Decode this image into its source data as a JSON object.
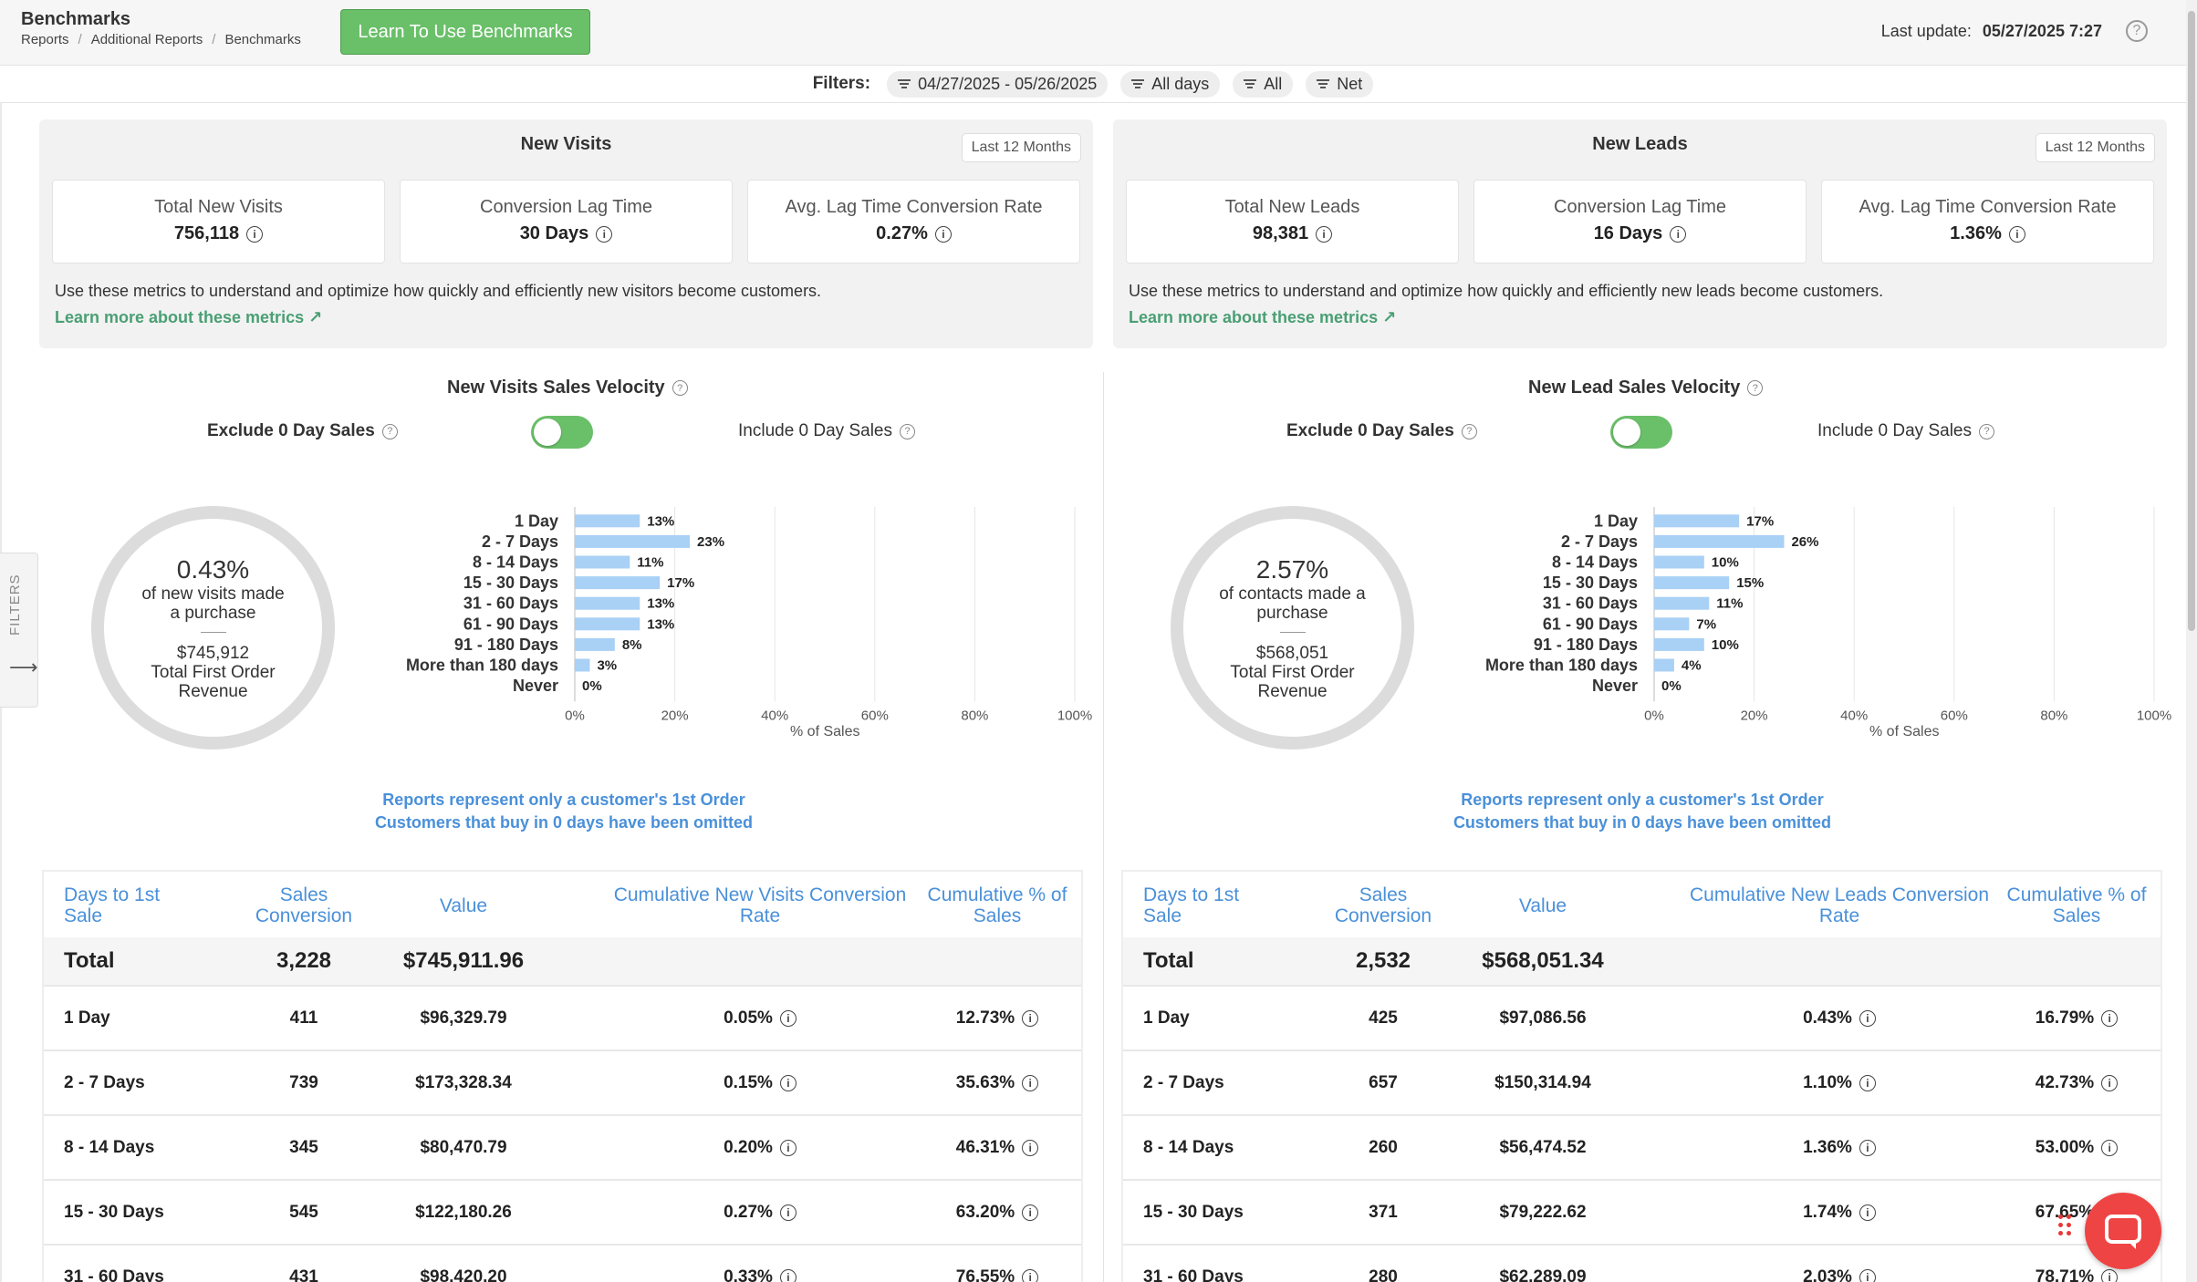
{
  "header": {
    "title": "Benchmarks",
    "breadcrumb": [
      "Reports",
      "Additional Reports",
      "Benchmarks"
    ],
    "learn_button": "Learn To Use Benchmarks",
    "last_update_label": "Last update:",
    "last_update_value": "05/27/2025 7:27",
    "help_icon": "question-circle-icon"
  },
  "filters": {
    "label": "Filters:",
    "chips": [
      "04/27/2025 - 05/26/2025",
      "All days",
      "All",
      "Net"
    ],
    "side_tab_label": "FILTERS"
  },
  "visits": {
    "summary": {
      "title": "New Visits",
      "period": "Last 12 Months",
      "metrics": [
        {
          "label": "Total New Visits",
          "value": "756,118"
        },
        {
          "label": "Conversion Lag Time",
          "value": "30 Days"
        },
        {
          "label": "Avg. Lag Time Conversion Rate",
          "value": "0.27%"
        }
      ],
      "description": "Use these metrics to understand and optimize how quickly and efficiently new visitors become customers.",
      "link": "Learn more about these metrics ↗"
    },
    "velocity": {
      "title": "New Visits Sales Velocity",
      "exclude_label": "Exclude 0 Day Sales",
      "include_label": "Include 0 Day Sales",
      "donut": {
        "pct": "0.43%",
        "sub": "of new visits made a purchase",
        "revenue": "$745,912",
        "revenue_label": "Total First Order Revenue"
      },
      "note_line1": "Reports represent only a customer's 1st Order",
      "note_line2": "Customers that buy in 0 days have been omitted"
    },
    "chart_data": {
      "type": "bar",
      "orientation": "horizontal",
      "categories": [
        "1 Day",
        "2 - 7 Days",
        "8 - 14 Days",
        "15 - 30 Days",
        "31 - 60 Days",
        "61 - 90 Days",
        "91 - 180 Days",
        "More than 180 days",
        "Never"
      ],
      "values": [
        13,
        23,
        11,
        17,
        13,
        13,
        8,
        3,
        0
      ],
      "value_labels": [
        "13%",
        "23%",
        "11%",
        "17%",
        "13%",
        "13%",
        "8%",
        "3%",
        "0%"
      ],
      "xticks": [
        "0%",
        "20%",
        "40%",
        "60%",
        "80%",
        "100%"
      ],
      "xlim": [
        0,
        100
      ],
      "xlabel": "% of Sales",
      "bar_color": "#a9d0f5"
    },
    "table": {
      "headers": [
        "Days to 1st Sale",
        "Sales Conversion",
        "Value",
        "Cumulative New Visits Conversion Rate",
        "Cumulative % of Sales"
      ],
      "total": {
        "label": "Total",
        "conversion": "3,228",
        "value": "$745,911.96"
      },
      "rows": [
        {
          "days": "1 Day",
          "conversion": "411",
          "value": "$96,329.79",
          "rate": "0.05%",
          "pct": "12.73%"
        },
        {
          "days": "2 - 7 Days",
          "conversion": "739",
          "value": "$173,328.34",
          "rate": "0.15%",
          "pct": "35.63%"
        },
        {
          "days": "8 - 14 Days",
          "conversion": "345",
          "value": "$80,470.79",
          "rate": "0.20%",
          "pct": "46.31%"
        },
        {
          "days": "15 - 30 Days",
          "conversion": "545",
          "value": "$122,180.26",
          "rate": "0.27%",
          "pct": "63.20%"
        },
        {
          "days": "31 - 60 Days",
          "conversion": "431",
          "value": "$98,420.20",
          "rate": "0.33%",
          "pct": "76.55%"
        }
      ]
    }
  },
  "leads": {
    "summary": {
      "title": "New Leads",
      "period": "Last 12 Months",
      "metrics": [
        {
          "label": "Total New Leads",
          "value": "98,381"
        },
        {
          "label": "Conversion Lag Time",
          "value": "16 Days"
        },
        {
          "label": "Avg. Lag Time Conversion Rate",
          "value": "1.36%"
        }
      ],
      "description": "Use these metrics to understand and optimize how quickly and efficiently new leads become customers.",
      "link": "Learn more about these metrics ↗"
    },
    "velocity": {
      "title": "New Lead Sales Velocity",
      "exclude_label": "Exclude 0 Day Sales",
      "include_label": "Include 0 Day Sales",
      "donut": {
        "pct": "2.57%",
        "sub": "of contacts made a purchase",
        "revenue": "$568,051",
        "revenue_label": "Total First Order Revenue"
      },
      "note_line1": "Reports represent only a customer's 1st Order",
      "note_line2": "Customers that buy in 0 days have been omitted"
    },
    "chart_data": {
      "type": "bar",
      "orientation": "horizontal",
      "categories": [
        "1 Day",
        "2 - 7 Days",
        "8 - 14 Days",
        "15 - 30 Days",
        "31 - 60 Days",
        "61 - 90 Days",
        "91 - 180 Days",
        "More than 180 days",
        "Never"
      ],
      "values": [
        17,
        26,
        10,
        15,
        11,
        7,
        10,
        4,
        0
      ],
      "value_labels": [
        "17%",
        "26%",
        "10%",
        "15%",
        "11%",
        "7%",
        "10%",
        "4%",
        "0%"
      ],
      "xticks": [
        "0%",
        "20%",
        "40%",
        "60%",
        "80%",
        "100%"
      ],
      "xlim": [
        0,
        100
      ],
      "xlabel": "% of Sales",
      "bar_color": "#a9d0f5"
    },
    "table": {
      "headers": [
        "Days to 1st Sale",
        "Sales Conversion",
        "Value",
        "Cumulative New Leads Conversion Rate",
        "Cumulative % of Sales"
      ],
      "total": {
        "label": "Total",
        "conversion": "2,532",
        "value": "$568,051.34"
      },
      "rows": [
        {
          "days": "1 Day",
          "conversion": "425",
          "value": "$97,086.56",
          "rate": "0.43%",
          "pct": "16.79%"
        },
        {
          "days": "2 - 7 Days",
          "conversion": "657",
          "value": "$150,314.94",
          "rate": "1.10%",
          "pct": "42.73%"
        },
        {
          "days": "8 - 14 Days",
          "conversion": "260",
          "value": "$56,474.52",
          "rate": "1.36%",
          "pct": "53.00%"
        },
        {
          "days": "15 - 30 Days",
          "conversion": "371",
          "value": "$79,222.62",
          "rate": "1.74%",
          "pct": "67.65%"
        },
        {
          "days": "31 - 60 Days",
          "conversion": "280",
          "value": "$62,289.09",
          "rate": "2.03%",
          "pct": "78.71%"
        }
      ]
    }
  },
  "colors": {
    "accent_green": "#6abf69",
    "link_green": "#4a9f74",
    "link_blue": "#4a90d9",
    "bar_blue": "#a9d0f5",
    "chat_red": "#ef4444"
  },
  "chat_widget": {
    "icon": "chat-bubble-icon"
  }
}
